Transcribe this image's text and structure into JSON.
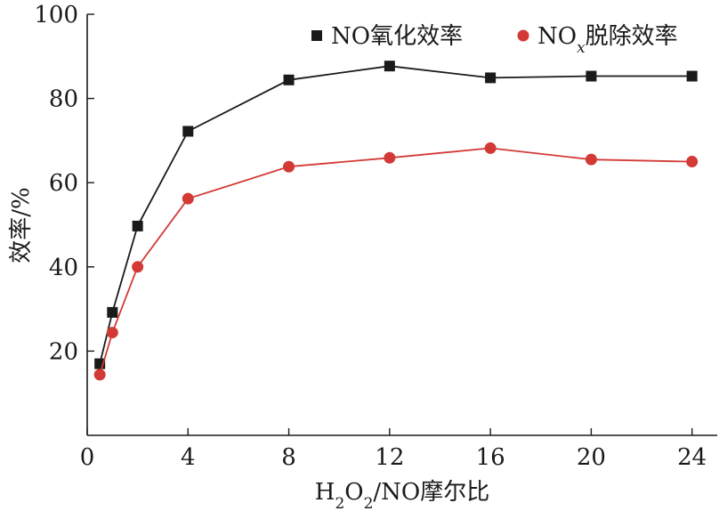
{
  "chart_data": {
    "type": "line",
    "title": "",
    "xlabel": {
      "parts": [
        "H",
        "2",
        "O",
        "2",
        "/NO摩尔比"
      ]
    },
    "ylabel": "效率/%",
    "xlim": [
      0,
      25
    ],
    "ylim": [
      0,
      100
    ],
    "xticks": [
      "0",
      "4",
      "8",
      "12",
      "16",
      "20",
      "24"
    ],
    "xtick_values": [
      0,
      4,
      8,
      12,
      16,
      20,
      24
    ],
    "yticks": [
      "20",
      "40",
      "60",
      "80",
      "100"
    ],
    "ytick_values": [
      20,
      40,
      60,
      80,
      100
    ],
    "grid": false,
    "legend_position": "top-right",
    "legend": [
      {
        "parts": [
          "NO氧化效率"
        ]
      },
      {
        "parts": [
          "NO",
          "x",
          "脱除效率"
        ]
      }
    ],
    "series": [
      {
        "marker": "square",
        "color": "#1a1a1a",
        "x": [
          0.5,
          1,
          2,
          4,
          8,
          12,
          16,
          20,
          24
        ],
        "y": [
          17,
          29.2,
          49.7,
          72.2,
          84.4,
          87.7,
          84.9,
          85.3,
          85.3
        ]
      },
      {
        "marker": "circle",
        "color": "#d33a36",
        "x": [
          0.5,
          1,
          2,
          4,
          8,
          12,
          16,
          20,
          24
        ],
        "y": [
          14.4,
          24.4,
          40,
          56.2,
          63.8,
          65.9,
          68.2,
          65.5,
          65
        ]
      }
    ]
  }
}
